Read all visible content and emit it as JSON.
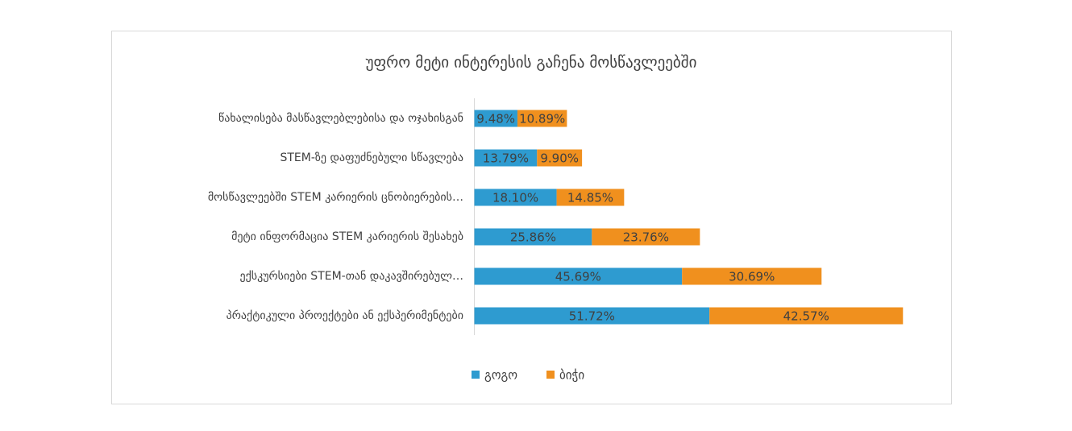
{
  "chart_data": {
    "type": "stacked-bar-horizontal",
    "title": "უფრო მეტი ინტერესის გაჩენა მოსწავლეებში",
    "categories": [
      "წახალისება მასწავლებლებისა და ოჯახისგან",
      "STEM-ზე  დაფუძნებული  სწავლება",
      "მოსწავლეებში STEM კარიერის ცნობიერების…",
      "მეტი ინფორმაცია STEM კარიერის შესახებ",
      "ექსკურსიები STEM-თან დაკავშირებულ…",
      "პრაქტიკული პროექტები ან ექსპერიმენტები"
    ],
    "series": [
      {
        "name": "გოგო",
        "color": "#2e9bd0",
        "values": [
          9.48,
          13.79,
          18.1,
          25.86,
          45.69,
          51.72
        ],
        "value_labels": [
          "9.48%",
          "13.79%",
          "18.10%",
          "25.86%",
          "45.69%",
          "51.72%"
        ]
      },
      {
        "name": "ბიჭი",
        "color": "#f0901e",
        "values": [
          10.89,
          9.9,
          14.85,
          23.76,
          30.69,
          42.57
        ],
        "value_labels": [
          "10.89%",
          "9.90%",
          "14.85%",
          "23.76%",
          "30.69%",
          "42.57%"
        ]
      }
    ]
  }
}
